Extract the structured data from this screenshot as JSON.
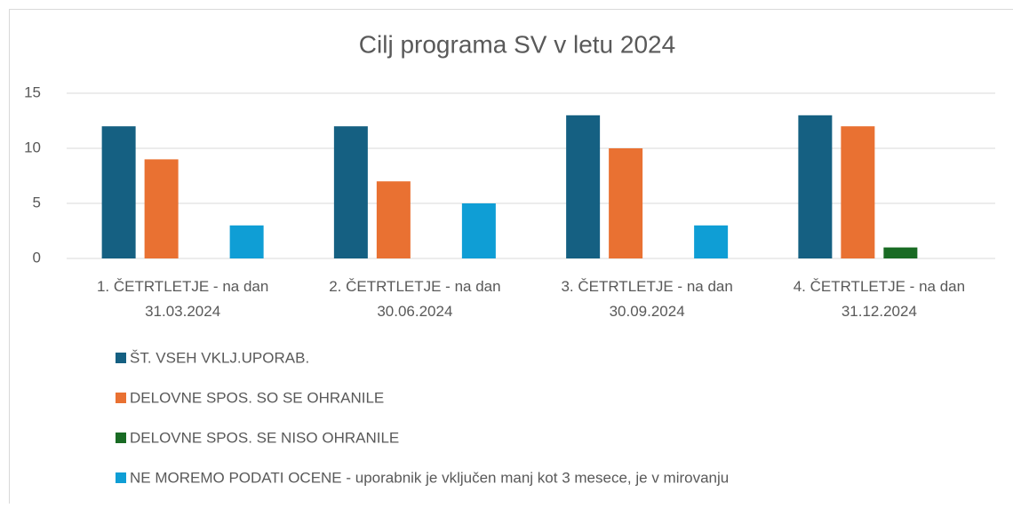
{
  "chart_data": {
    "type": "bar",
    "title": "Cilj programa SV v letu 2024",
    "categories": [
      "1. ČETRTLETJE - na dan 31.03.2024",
      "2. ČETRTLETJE - na dan 30.06.2024",
      "3. ČETRTLETJE - na dan 30.09.2024",
      "4. ČETRTLETJE - na dan 31.12.2024"
    ],
    "series": [
      {
        "name": "ŠT. VSEH VKLJ.UPORAB.",
        "color": "#156082",
        "values": [
          12,
          12,
          13,
          13
        ]
      },
      {
        "name": "DELOVNE SPOS. SO SE OHRANILE",
        "color": "#e97132",
        "values": [
          9,
          7,
          10,
          12
        ]
      },
      {
        "name": "DELOVNE SPOS. SE NISO OHRANILE",
        "color": "#196b24",
        "values": [
          0,
          0,
          0,
          1
        ]
      },
      {
        "name": "NE MOREMO PODATI OCENE - uporabnik je vključen manj kot 3 mesece, je v mirovanju",
        "color": "#0f9ed5",
        "values": [
          3,
          5,
          3,
          0
        ]
      }
    ],
    "ylim": [
      0,
      15
    ],
    "yticks": [
      0,
      5,
      10,
      15
    ],
    "grid": true,
    "legend": "bottom"
  }
}
